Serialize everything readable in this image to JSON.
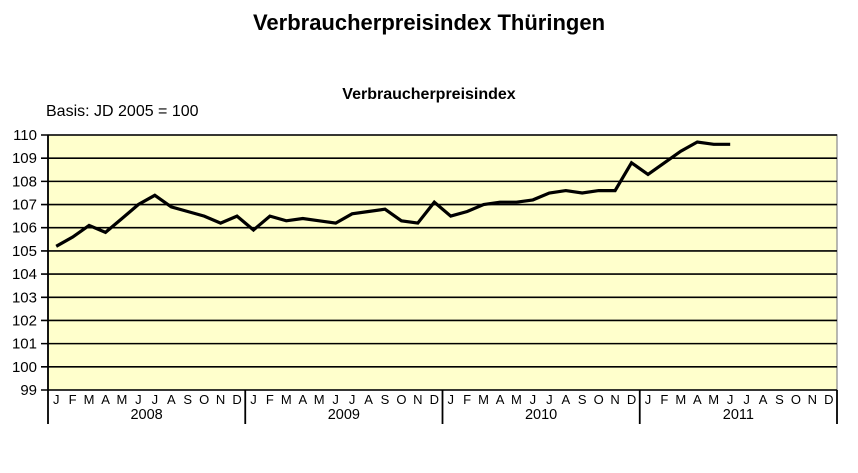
{
  "header": {
    "title": "Verbraucherpreisindex Thüringen"
  },
  "chart": {
    "subtitle": "Verbraucherpreisindex",
    "basis_label": "Basis: JD 2005 = 100"
  },
  "chart_data": {
    "type": "line",
    "title": "Verbraucherpreisindex Thüringen",
    "subtitle": "Verbraucherpreisindex",
    "annotation": "Basis: JD 2005 = 100",
    "xlabel": "",
    "ylabel": "",
    "ylim": [
      99,
      110
    ],
    "y_tick_step": 1,
    "y_ticks": [
      110,
      109,
      108,
      107,
      106,
      105,
      104,
      103,
      102,
      101,
      100,
      99
    ],
    "grid": true,
    "legend": false,
    "colors": {
      "plot_bg": "#ffffcc",
      "line": "#000000",
      "grid": "#000000",
      "plot_border": "#999999",
      "text": "#000000"
    },
    "month_labels": [
      "J",
      "F",
      "M",
      "A",
      "M",
      "J",
      "J",
      "A",
      "S",
      "O",
      "N",
      "D"
    ],
    "years": [
      "2008",
      "2009",
      "2010",
      "2011"
    ],
    "series": [
      {
        "name": "Verbraucherpreisindex Thüringen (JD 2005 = 100)",
        "start": "2008-01",
        "end": "2011-06",
        "values": [
          105.2,
          105.6,
          106.1,
          105.8,
          106.4,
          107.0,
          107.4,
          106.9,
          106.7,
          106.5,
          106.2,
          106.5,
          105.9,
          106.5,
          106.3,
          106.4,
          106.3,
          106.2,
          106.6,
          106.7,
          106.8,
          106.3,
          106.2,
          107.1,
          106.5,
          106.7,
          107.0,
          107.1,
          107.1,
          107.2,
          107.5,
          107.6,
          107.5,
          107.6,
          107.6,
          108.8,
          108.3,
          108.8,
          109.3,
          109.7,
          109.6,
          109.6
        ]
      }
    ]
  }
}
